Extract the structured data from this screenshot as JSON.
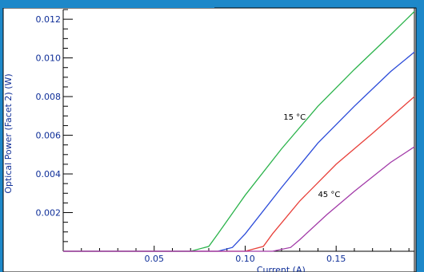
{
  "chart_data": {
    "type": "line",
    "title": "",
    "xlabel": "Current (A)",
    "ylabel": "Optical Power (Facet 2) (W)",
    "xlim": [
      0.0,
      0.193
    ],
    "ylim": [
      0.0,
      0.0125
    ],
    "x_ticks": [
      "0.05",
      "0.10",
      "0.15"
    ],
    "y_ticks": [
      "0.002",
      "0.004",
      "0.006",
      "0.008",
      "0.010",
      "0.012"
    ],
    "grid": false,
    "series": [
      {
        "color": "#2bb34b",
        "x": [
          0.0,
          0.07,
          0.08,
          0.085,
          0.1,
          0.12,
          0.14,
          0.16,
          0.18,
          0.193
        ],
        "y": [
          0.0,
          0.0,
          0.00025,
          0.0009,
          0.0029,
          0.0053,
          0.0075,
          0.0094,
          0.0112,
          0.0124
        ]
      },
      {
        "color": "#2b4bd9",
        "x": [
          0.0,
          0.085,
          0.093,
          0.1,
          0.12,
          0.14,
          0.16,
          0.18,
          0.193
        ],
        "y": [
          0.0,
          0.0,
          0.0002,
          0.0009,
          0.0033,
          0.0056,
          0.0075,
          0.0093,
          0.0103
        ]
      },
      {
        "color": "#e8403a",
        "x": [
          0.0,
          0.1,
          0.11,
          0.115,
          0.13,
          0.15,
          0.17,
          0.193
        ],
        "y": [
          0.0,
          0.0,
          0.00025,
          0.0009,
          0.0026,
          0.0045,
          0.0061,
          0.008
        ]
      },
      {
        "color": "#a23aa8",
        "x": [
          0.0,
          0.115,
          0.125,
          0.13,
          0.145,
          0.16,
          0.18,
          0.193
        ],
        "y": [
          0.0,
          0.0,
          0.0002,
          0.0006,
          0.0019,
          0.0031,
          0.0046,
          0.0054
        ]
      }
    ],
    "annotations": [
      {
        "text": "15 °C",
        "x": 0.121,
        "y": 0.0068
      },
      {
        "text": "45 °C",
        "x": 0.14,
        "y": 0.0028
      }
    ]
  }
}
